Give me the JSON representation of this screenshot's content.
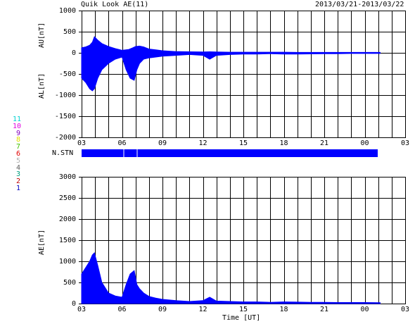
{
  "header": {
    "title": "Quik Look AE(11)",
    "date_range": "2013/03/21-2013/03/22"
  },
  "station_label": "N.STN",
  "station_numbers": [
    {
      "label": "11",
      "color": "#00d0d0"
    },
    {
      "label": "10",
      "color": "#e000e0"
    },
    {
      "label": "9",
      "color": "#8000c0"
    },
    {
      "label": "8",
      "color": "#e0e000"
    },
    {
      "label": "7",
      "color": "#40c000"
    },
    {
      "label": "6",
      "color": "#e00000"
    },
    {
      "label": "5",
      "color": "#b0b0b0"
    },
    {
      "label": "4",
      "color": "#606060"
    },
    {
      "label": "3",
      "color": "#00a080"
    },
    {
      "label": "2",
      "color": "#c00000"
    },
    {
      "label": "1",
      "color": "#0000c0"
    }
  ],
  "colors": {
    "data": "#0000ff",
    "axis": "#000000"
  },
  "chart_data": [
    {
      "type": "area",
      "ylabel_top": "AU[nT]",
      "ylabel_bottom": "AL[nT]",
      "ylim": [
        -2000,
        1000
      ],
      "yticks": [
        "1000",
        "500",
        "0",
        "-500",
        "-1000",
        "-1500",
        "-2000"
      ],
      "xticks": [
        "03",
        "06",
        "09",
        "12",
        "15",
        "18",
        "21",
        "00",
        "03"
      ],
      "xlim_hours": [
        3,
        27
      ],
      "data_end_hour": 25.15,
      "grid": true,
      "series": [
        {
          "name": "AU",
          "x": [
            3.0,
            3.3,
            3.6,
            3.8,
            3.95,
            4.2,
            4.5,
            5.0,
            5.5,
            6.0,
            6.5,
            6.8,
            7.0,
            7.3,
            7.6,
            8.0,
            8.5,
            9.0,
            10.0,
            11.0,
            12.0,
            12.5,
            13.0,
            14.0,
            15.0,
            16.0,
            17.0,
            18.0,
            19.0,
            20.0,
            21.0,
            22.0,
            23.0,
            24.0,
            25.15
          ],
          "values": [
            120,
            140,
            180,
            250,
            380,
            300,
            220,
            150,
            100,
            60,
            80,
            120,
            150,
            160,
            140,
            90,
            70,
            50,
            30,
            25,
            20,
            25,
            20,
            15,
            15,
            15,
            15,
            15,
            10,
            10,
            10,
            10,
            10,
            10,
            10
          ]
        },
        {
          "name": "AL",
          "x": [
            3.0,
            3.3,
            3.6,
            3.8,
            3.95,
            4.2,
            4.5,
            5.0,
            5.5,
            6.0,
            6.3,
            6.6,
            6.9,
            7.1,
            7.3,
            7.6,
            8.0,
            8.5,
            9.0,
            10.0,
            11.0,
            12.0,
            12.5,
            13.0,
            14.0,
            15.0,
            16.0,
            17.0,
            18.0,
            19.0,
            20.0,
            21.0,
            22.0,
            23.0,
            24.0,
            25.15
          ],
          "values": [
            -600,
            -700,
            -850,
            -900,
            -850,
            -600,
            -400,
            -250,
            -150,
            -100,
            -400,
            -600,
            -650,
            -400,
            -250,
            -150,
            -120,
            -100,
            -80,
            -60,
            -40,
            -60,
            -150,
            -60,
            -40,
            -30,
            -30,
            -20,
            -30,
            -30,
            -25,
            -20,
            -20,
            -15,
            -15,
            -15
          ]
        }
      ]
    },
    {
      "type": "area",
      "ylabel": "AE[nT]",
      "ylim": [
        0,
        3000
      ],
      "yticks": [
        "3000",
        "2500",
        "2000",
        "1500",
        "1000",
        "500",
        "0"
      ],
      "xticks": [
        "03",
        "06",
        "09",
        "12",
        "15",
        "18",
        "21",
        "00",
        "03"
      ],
      "xlabel": "Time [UT]",
      "xlim_hours": [
        3,
        27
      ],
      "data_end_hour": 25.15,
      "grid": true,
      "series": [
        {
          "name": "AE",
          "x": [
            3.0,
            3.3,
            3.6,
            3.8,
            3.95,
            4.2,
            4.5,
            5.0,
            5.5,
            6.0,
            6.3,
            6.6,
            6.9,
            7.1,
            7.3,
            7.6,
            8.0,
            8.5,
            9.0,
            10.0,
            11.0,
            12.0,
            12.5,
            13.0,
            14.0,
            15.0,
            16.0,
            17.0,
            18.0,
            19.0,
            20.0,
            21.0,
            22.0,
            23.0,
            24.0,
            25.15
          ],
          "values": [
            700,
            850,
            1000,
            1150,
            1200,
            900,
            500,
            250,
            180,
            150,
            450,
            700,
            780,
            450,
            350,
            250,
            170,
            130,
            100,
            70,
            50,
            70,
            150,
            60,
            50,
            40,
            40,
            30,
            40,
            35,
            30,
            30,
            25,
            25,
            25,
            20
          ]
        }
      ]
    }
  ]
}
